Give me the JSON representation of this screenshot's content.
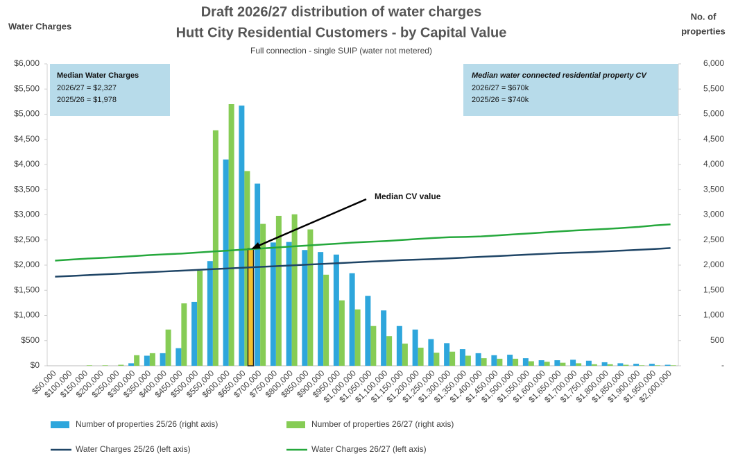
{
  "chart_data": {
    "type": "bar",
    "title": [
      "Draft 2026/27 distribution of water charges",
      "Hutt City Residential Customers - by Capital Value"
    ],
    "subtitle": "Full connection - single SUIP (water not metered)",
    "ylabel": "Water Charges",
    "y2label": [
      "No. of",
      "properties"
    ],
    "annotation": "Median CV value",
    "info_left": {
      "title": "Median Water Charges",
      "lines": [
        "2026/27 = $2,327",
        "2025/26 = $1,978"
      ]
    },
    "info_right": {
      "title": "Median water connected residential property CV",
      "lines": [
        "2026/27 = $670k",
        "2025/26 = $740k"
      ]
    },
    "median_marker_value": 2327,
    "categories": [
      "$50,000",
      "$100,000",
      "$150,000",
      "$200,000",
      "$250,000",
      "$300,000",
      "$350,000",
      "$400,000",
      "$450,000",
      "$500,000",
      "$550,000",
      "$600,000",
      "$650,000",
      "$700,000",
      "$750,000",
      "$800,000",
      "$850,000",
      "$900,000",
      "$950,000",
      "$1,000,000",
      "$1,050,000",
      "$1,100,000",
      "$1,150,000",
      "$1,200,000",
      "$1,250,000",
      "$1,300,000",
      "$1,350,000",
      "$1,400,000",
      "$1,450,000",
      "$1,500,000",
      "$1,550,000",
      "$1,600,000",
      "$1,650,000",
      "$1,700,000",
      "$1,750,000",
      "$1,800,000",
      "$1,850,000",
      "$1,900,000",
      "$1,950,000",
      "$2,000,000"
    ],
    "series": [
      {
        "name": "Number of properties 25/26 (right axis)",
        "type": "bar",
        "axis": "y2",
        "color": "#2ea6dc",
        "values": [
          0,
          0,
          0,
          0,
          0,
          50,
          200,
          250,
          350,
          1270,
          2080,
          4100,
          5170,
          3620,
          2450,
          2460,
          2300,
          2260,
          2210,
          1840,
          1390,
          1100,
          790,
          720,
          530,
          450,
          330,
          250,
          210,
          220,
          150,
          110,
          110,
          120,
          100,
          70,
          50,
          40,
          40,
          20
        ]
      },
      {
        "name": "Number of properties 26/27 (right axis)",
        "type": "bar",
        "axis": "y2",
        "color": "#86cc55",
        "values": [
          0,
          0,
          10,
          10,
          20,
          210,
          250,
          720,
          1240,
          1890,
          4680,
          5200,
          3870,
          2820,
          2980,
          3010,
          2710,
          1810,
          1300,
          1120,
          790,
          590,
          440,
          360,
          260,
          280,
          200,
          150,
          140,
          140,
          90,
          80,
          60,
          50,
          30,
          30,
          20,
          10,
          10,
          10
        ]
      },
      {
        "name": "Water Charges 25/26 (left axis)",
        "type": "line",
        "color": "#1f4566",
        "values": [
          1770,
          1785,
          1800,
          1815,
          1830,
          1845,
          1860,
          1875,
          1890,
          1905,
          1920,
          1935,
          1950,
          1965,
          1980,
          1995,
          2010,
          2025,
          2040,
          2055,
          2070,
          2085,
          2100,
          2110,
          2120,
          2135,
          2150,
          2165,
          2180,
          2195,
          2210,
          2225,
          2240,
          2250,
          2260,
          2275,
          2290,
          2305,
          2320,
          2340
        ]
      },
      {
        "name": "Water Charges 26/27 (left axis)",
        "type": "line",
        "color": "#25a83c",
        "values": [
          2090,
          2110,
          2130,
          2145,
          2160,
          2180,
          2200,
          2215,
          2230,
          2250,
          2270,
          2290,
          2310,
          2330,
          2350,
          2370,
          2390,
          2410,
          2430,
          2450,
          2465,
          2480,
          2500,
          2520,
          2540,
          2555,
          2560,
          2570,
          2590,
          2610,
          2630,
          2650,
          2670,
          2690,
          2705,
          2720,
          2740,
          2760,
          2790,
          2810
        ]
      }
    ],
    "ylim": [
      0,
      6000
    ],
    "yticks": [
      {
        "value": 0,
        "label": "$0"
      },
      {
        "value": 500,
        "label": "$500"
      },
      {
        "value": 1000,
        "label": "$1,000"
      },
      {
        "value": 1500,
        "label": "$1,500"
      },
      {
        "value": 2000,
        "label": "$2,000"
      },
      {
        "value": 2500,
        "label": "$2,500"
      },
      {
        "value": 3000,
        "label": "$3,000"
      },
      {
        "value": 3500,
        "label": "$3,500"
      },
      {
        "value": 4000,
        "label": "$4,000"
      },
      {
        "value": 4500,
        "label": "$4,500"
      },
      {
        "value": 5000,
        "label": "$5,000"
      },
      {
        "value": 5500,
        "label": "$5,500"
      },
      {
        "value": 6000,
        "label": "$6,000"
      }
    ],
    "y2lim": [
      0,
      6000
    ],
    "y2ticks": [
      {
        "value": 0,
        "label": "-"
      },
      500,
      {
        "value": 1000,
        "label": "1,000"
      },
      {
        "value": 1500,
        "label": "1,500"
      },
      {
        "value": 2000,
        "label": "2,000"
      },
      {
        "value": 2500,
        "label": "2,500"
      },
      {
        "value": 3000,
        "label": "3,000"
      },
      {
        "value": 3500,
        "label": "3,500"
      },
      {
        "value": 4000,
        "label": "4,000"
      },
      {
        "value": 4500,
        "label": "4,500"
      },
      {
        "value": 5000,
        "label": "5,000"
      },
      {
        "value": 5500,
        "label": "5,500"
      },
      {
        "value": 6000,
        "label": "6,000"
      }
    ],
    "grid": false
  }
}
